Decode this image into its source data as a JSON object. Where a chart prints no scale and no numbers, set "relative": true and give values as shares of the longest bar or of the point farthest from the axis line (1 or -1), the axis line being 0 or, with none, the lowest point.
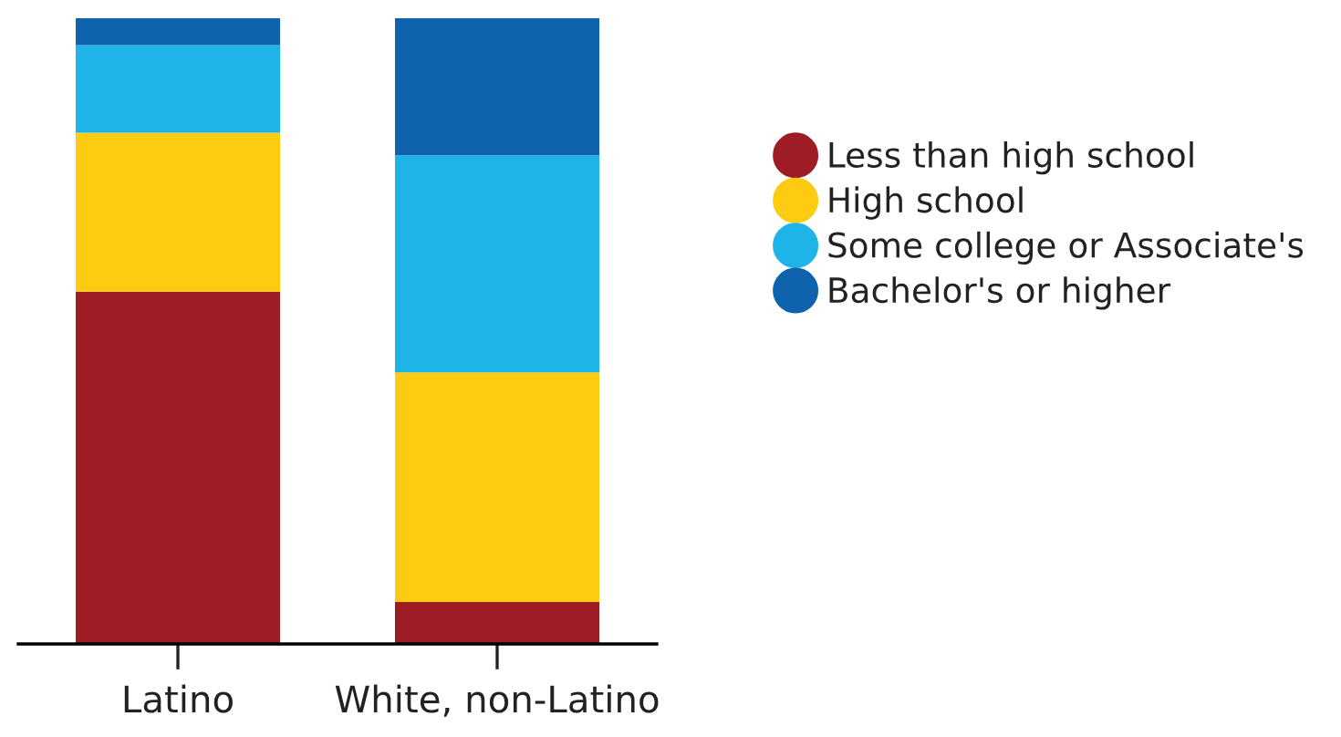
{
  "chart_data": {
    "type": "bar",
    "stacked": true,
    "relative": true,
    "categories": [
      "Latino",
      "White, non-Latino"
    ],
    "series": [
      {
        "name": "Less than high school",
        "color": "#9e1c24",
        "values": [
          0.563,
          0.067
        ]
      },
      {
        "name": "High school",
        "color": "#fdcb12",
        "values": [
          0.254,
          0.367
        ]
      },
      {
        "name": "Some college or Associate's",
        "color": "#1fb4e8",
        "values": [
          0.14,
          0.347
        ]
      },
      {
        "name": "Bachelor's or higher",
        "color": "#0f62ac",
        "values": [
          0.043,
          0.219
        ]
      }
    ],
    "legend": "right",
    "grid": false,
    "marker": "circle"
  }
}
